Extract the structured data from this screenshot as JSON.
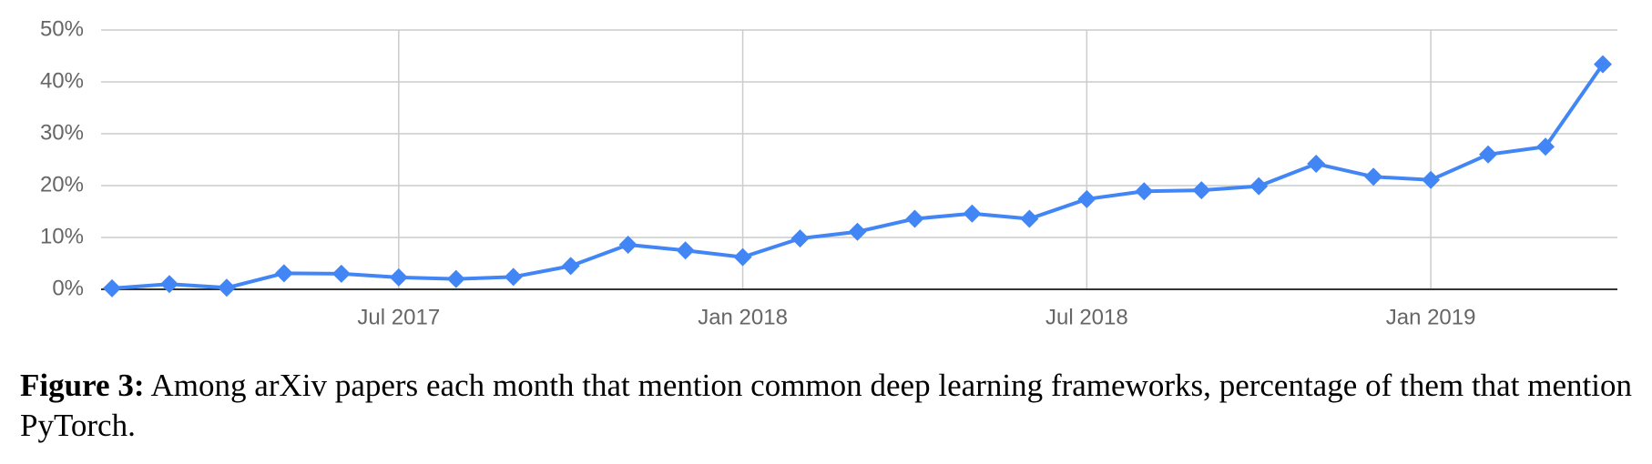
{
  "chart_data": {
    "type": "line",
    "x": [
      "2017-02",
      "2017-03",
      "2017-04",
      "2017-05",
      "2017-06",
      "2017-07",
      "2017-08",
      "2017-09",
      "2017-10",
      "2017-11",
      "2017-12",
      "2018-01",
      "2018-02",
      "2018-03",
      "2018-04",
      "2018-05",
      "2018-06",
      "2018-07",
      "2018-08",
      "2018-09",
      "2018-10",
      "2018-11",
      "2018-12",
      "2019-01",
      "2019-02",
      "2019-03",
      "2019-04"
    ],
    "values": [
      0.2,
      1,
      0.3,
      3.1,
      3,
      2.3,
      2,
      2.4,
      4.5,
      8.6,
      7.5,
      6.2,
      9.8,
      11.1,
      13.6,
      14.6,
      13.6,
      17.4,
      18.9,
      19.1,
      19.9,
      24.2,
      21.7,
      21.1,
      26,
      27.5,
      43.4
    ],
    "color": "#4285f4",
    "xlim": [
      "2017-02",
      "2019-04"
    ],
    "xticks": [
      {
        "value": "2017-07",
        "label": "Jul 2017"
      },
      {
        "value": "2018-01",
        "label": "Jan 2018"
      },
      {
        "value": "2018-07",
        "label": "Jul 2018"
      },
      {
        "value": "2019-01",
        "label": "Jan 2019"
      }
    ],
    "ylim": [
      0,
      50
    ],
    "yticks": [
      {
        "value": 0,
        "label": "0%"
      },
      {
        "value": 10,
        "label": "10%"
      },
      {
        "value": 20,
        "label": "20%"
      },
      {
        "value": 30,
        "label": "30%"
      },
      {
        "value": 40,
        "label": "40%"
      },
      {
        "value": 50,
        "label": "50%"
      }
    ],
    "grid": true
  },
  "caption": {
    "label": "Figure 3:",
    "text": "Among arXiv papers each month that mention common deep learning frameworks, percentage of them that mention PyTorch."
  }
}
